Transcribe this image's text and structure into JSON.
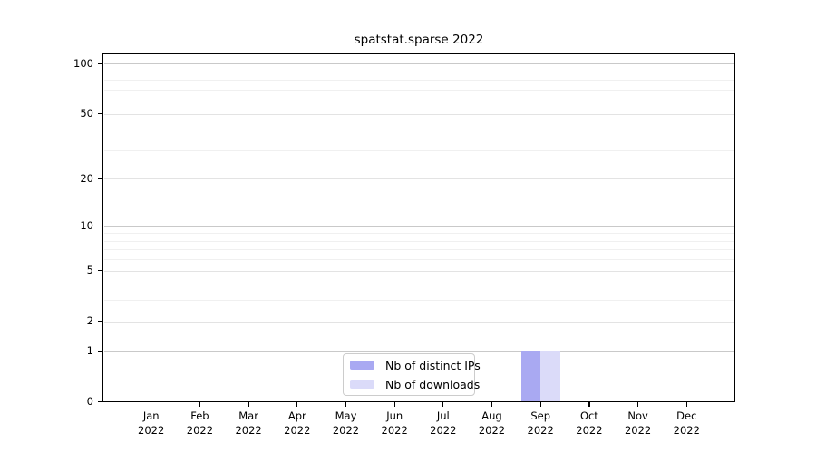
{
  "figure": {
    "background": "#ffffff"
  },
  "chart_data": {
    "type": "bar",
    "title": "spatstat.sparse 2022",
    "x": {
      "months": [
        "Jan",
        "Feb",
        "Mar",
        "Apr",
        "May",
        "Jun",
        "Jul",
        "Aug",
        "Sep",
        "Oct",
        "Nov",
        "Dec"
      ],
      "year": "2022"
    },
    "series": [
      {
        "name": "Nb of distinct IPs",
        "color": "#a9a9f2",
        "values": [
          0,
          0,
          0,
          0,
          0,
          0,
          0,
          0,
          1,
          0,
          0,
          0
        ]
      },
      {
        "name": "Nb of downloads",
        "color": "#dbdbf9",
        "values": [
          0,
          0,
          0,
          0,
          0,
          0,
          0,
          0,
          1,
          0,
          0,
          0
        ]
      }
    ],
    "yscale": "log1p",
    "ylim": [
      0,
      115
    ],
    "yticks": [
      0,
      1,
      2,
      5,
      10,
      20,
      50,
      100
    ],
    "minor_gridlines": [
      3,
      4,
      6,
      7,
      8,
      9,
      30,
      40,
      60,
      70,
      80,
      90
    ],
    "strong_gridlines": [
      1,
      10,
      100
    ],
    "grid": true,
    "legend_position": "bottom-center",
    "colors": {
      "grid_strong": "#c9c9c9",
      "grid_soft": "#e3e3e3",
      "grid_minor": "#f0f0f0",
      "frame": "#000000",
      "text": "#000000",
      "legend_border": "#cccccc"
    }
  }
}
